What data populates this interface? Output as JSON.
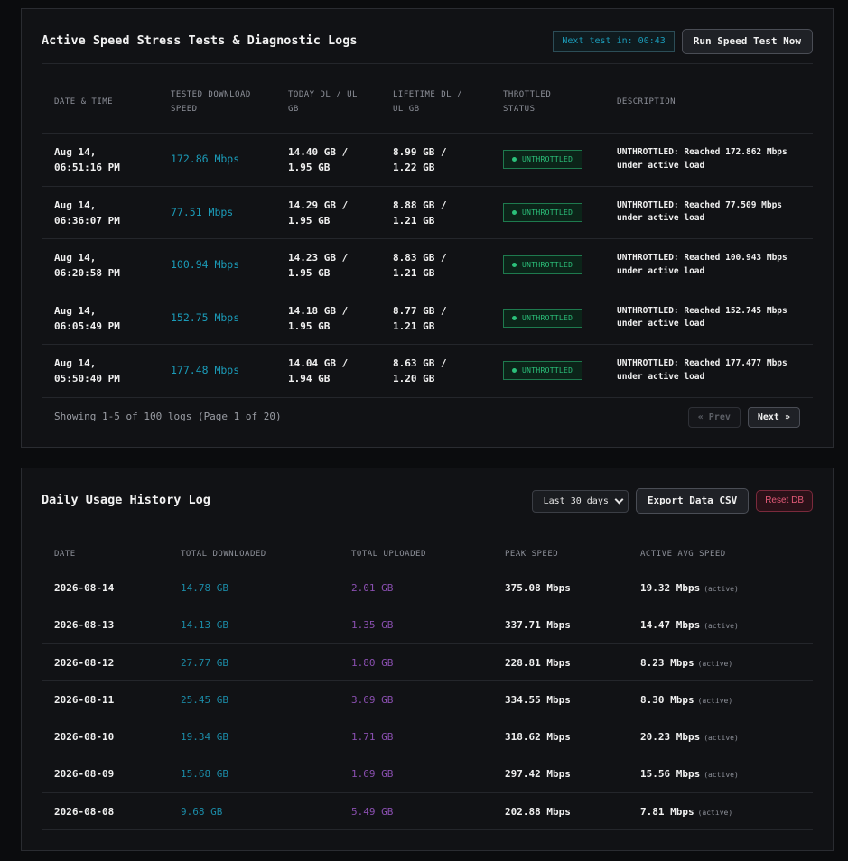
{
  "tests_panel": {
    "title": "Active Speed Stress Tests & Diagnostic Logs",
    "countdown": "Next test in: 00:43",
    "run_button": "Run Speed Test Now",
    "headers": {
      "date": [
        "DATE & TIME"
      ],
      "speed": [
        "TESTED DOWNLOAD",
        "SPEED"
      ],
      "today": [
        "TODAY DL / UL",
        "GB"
      ],
      "lifetime": [
        "LIFETIME DL /",
        "UL GB"
      ],
      "status": [
        "THROTTLED",
        "STATUS"
      ],
      "desc": [
        "DESCRIPTION"
      ]
    },
    "rows": [
      {
        "date1": "Aug 14,",
        "date2": "06:51:16 PM",
        "speed": "172.86 Mbps",
        "today1": "14.40 GB /",
        "today2": "1.95 GB",
        "life1": "8.99 GB /",
        "life2": "1.22 GB",
        "status": "UNTHROTTLED",
        "desc1": "UNTHROTTLED: Reached 172.862 Mbps",
        "desc2": "under active load"
      },
      {
        "date1": "Aug 14,",
        "date2": "06:36:07 PM",
        "speed": "77.51 Mbps",
        "today1": "14.29 GB /",
        "today2": "1.95 GB",
        "life1": "8.88 GB /",
        "life2": "1.21 GB",
        "status": "UNTHROTTLED",
        "desc1": "UNTHROTTLED: Reached 77.509 Mbps",
        "desc2": "under active load"
      },
      {
        "date1": "Aug 14,",
        "date2": "06:20:58 PM",
        "speed": "100.94 Mbps",
        "today1": "14.23 GB /",
        "today2": "1.95 GB",
        "life1": "8.83 GB /",
        "life2": "1.21 GB",
        "status": "UNTHROTTLED",
        "desc1": "UNTHROTTLED: Reached 100.943 Mbps",
        "desc2": "under active load"
      },
      {
        "date1": "Aug 14,",
        "date2": "06:05:49 PM",
        "speed": "152.75 Mbps",
        "today1": "14.18 GB /",
        "today2": "1.95 GB",
        "life1": "8.77 GB /",
        "life2": "1.21 GB",
        "status": "UNTHROTTLED",
        "desc1": "UNTHROTTLED: Reached 152.745 Mbps",
        "desc2": "under active load"
      },
      {
        "date1": "Aug 14,",
        "date2": "05:50:40 PM",
        "speed": "177.48 Mbps",
        "today1": "14.04 GB /",
        "today2": "1.94 GB",
        "life1": "8.63 GB /",
        "life2": "1.20 GB",
        "status": "UNTHROTTLED",
        "desc1": "UNTHROTTLED: Reached 177.477 Mbps",
        "desc2": "under active load"
      }
    ],
    "footer_text": "Showing 1-5 of 100 logs (Page 1 of 20)",
    "prev_label": "« Prev",
    "next_label": "Next »"
  },
  "usage_panel": {
    "title": "Daily Usage History Log",
    "range_select": "Last 30 days",
    "export_button": "Export Data CSV",
    "reset_button": "Reset DB",
    "headers": [
      "DATE",
      "TOTAL DOWNLOADED",
      "TOTAL UPLOADED",
      "PEAK SPEED",
      "ACTIVE AVG SPEED"
    ],
    "active_tag": "(active)",
    "rows": [
      {
        "date": "2026-08-14",
        "dl": "14.78 GB",
        "ul": "2.01 GB",
        "peak": "375.08 Mbps",
        "avg": "19.32 Mbps"
      },
      {
        "date": "2026-08-13",
        "dl": "14.13 GB",
        "ul": "1.35 GB",
        "peak": "337.71 Mbps",
        "avg": "14.47 Mbps"
      },
      {
        "date": "2026-08-12",
        "dl": "27.77 GB",
        "ul": "1.80 GB",
        "peak": "228.81 Mbps",
        "avg": "8.23 Mbps"
      },
      {
        "date": "2026-08-11",
        "dl": "25.45 GB",
        "ul": "3.69 GB",
        "peak": "334.55 Mbps",
        "avg": "8.30 Mbps"
      },
      {
        "date": "2026-08-10",
        "dl": "19.34 GB",
        "ul": "1.71 GB",
        "peak": "318.62 Mbps",
        "avg": "20.23 Mbps"
      },
      {
        "date": "2026-08-09",
        "dl": "15.68 GB",
        "ul": "1.69 GB",
        "peak": "297.42 Mbps",
        "avg": "15.56 Mbps"
      },
      {
        "date": "2026-08-08",
        "dl": "9.68 GB",
        "ul": "5.49 GB",
        "peak": "202.88 Mbps",
        "avg": "7.81 Mbps"
      }
    ]
  },
  "colors": {
    "accent_cyan": "#1b9bb8",
    "upload_purple": "#8a4fb0",
    "status_green": "#2bc07a",
    "danger_red": "#e45a78"
  }
}
